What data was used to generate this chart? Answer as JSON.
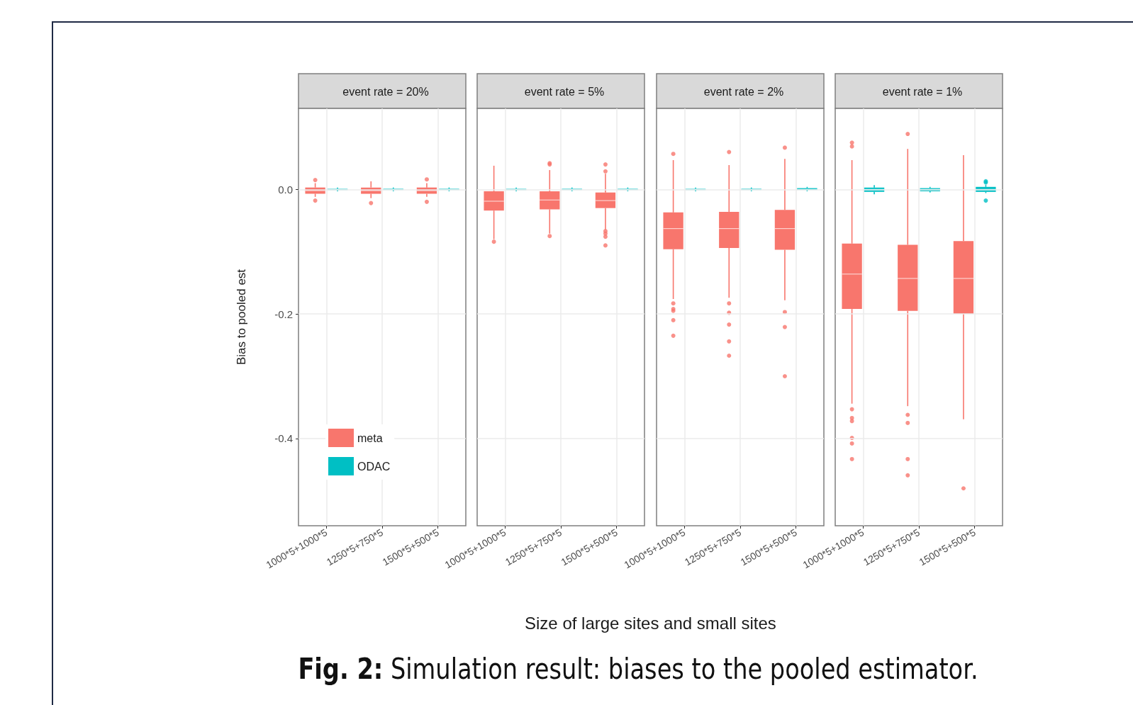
{
  "chart_data": [
    {
      "type": "box",
      "title": "event rate = 20%",
      "ylabel": "Bias to pooled est",
      "xlabel": "Size of large sites and small sites",
      "annotations": [
        "Fig. 2:  Simulation result: biases to the pooled estimator."
      ],
      "categories": [
        "1000*5+1000*5",
        "1250*5+750*5",
        "1500*5+500*5"
      ],
      "ylim": [
        -0.54,
        0.13
      ],
      "yticks": [
        {
          "value": 0,
          "label": "0.0"
        },
        -0.2,
        -0.4
      ],
      "grid": true,
      "legend": "bottom left",
      "series": [
        {
          "name": "meta",
          "color": "#f8766d",
          "boxes": [
            {
              "low": -0.012,
              "q1": -0.007,
              "median": -0.002,
              "q3": 0.003,
              "high": 0.01,
              "outliers": [
                0.015,
                -0.018
              ]
            },
            {
              "low": -0.014,
              "q1": -0.007,
              "median": -0.002,
              "q3": 0.003,
              "high": 0.013,
              "outliers": [
                -0.022
              ]
            },
            {
              "low": -0.012,
              "q1": -0.007,
              "median": -0.002,
              "q3": 0.003,
              "high": 0.01,
              "outliers": [
                0.016,
                -0.02
              ]
            }
          ]
        },
        {
          "name": "ODAC",
          "color": "#00bfc4",
          "boxes": [
            {
              "low": -0.003,
              "q1": -0.001,
              "median": 0,
              "q3": 0.001,
              "high": 0.003
            },
            {
              "low": -0.003,
              "q1": -0.001,
              "median": 0,
              "q3": 0.001,
              "high": 0.003
            },
            {
              "low": -0.003,
              "q1": -0.001,
              "median": 0,
              "q3": 0.001,
              "high": 0.003
            }
          ]
        }
      ]
    },
    {
      "type": "box",
      "title": "event rate = 5%",
      "categories": [
        "1000*5+1000*5",
        "1250*5+750*5",
        "1500*5+500*5"
      ],
      "ylim": [
        -0.54,
        0.13
      ],
      "yticks": [
        0,
        -0.2,
        -0.4
      ],
      "grid": true,
      "tick_labels": "x",
      "series": [
        {
          "color": "#f8766d",
          "boxes": [
            {
              "low": -0.08,
              "q1": -0.034,
              "median": -0.019,
              "q3": -0.003,
              "high": 0.038,
              "outliers": [
                -0.084
              ]
            },
            {
              "low": -0.071,
              "q1": -0.032,
              "median": -0.017,
              "q3": -0.003,
              "high": 0.031,
              "outliers": [
                0.042,
                0.04,
                -0.075
              ]
            },
            {
              "low": -0.065,
              "q1": -0.03,
              "median": -0.018,
              "q3": -0.005,
              "high": 0.025,
              "outliers": [
                0.04,
                0.029,
                -0.067,
                -0.071,
                -0.076,
                -0.09
              ]
            }
          ]
        },
        {
          "color": "#00bfc4",
          "boxes": [
            {
              "low": -0.003,
              "q1": -0.001,
              "median": 0,
              "q3": 0.001,
              "high": 0.003
            },
            {
              "low": -0.003,
              "q1": -0.001,
              "median": 0,
              "q3": 0.001,
              "high": 0.003
            },
            {
              "low": -0.003,
              "q1": -0.001,
              "median": 0,
              "q3": 0.001,
              "high": 0.003
            }
          ]
        }
      ]
    },
    {
      "type": "box",
      "title": "event rate = 2%",
      "categories": [
        "1000*5+1000*5",
        "1250*5+750*5",
        "1500*5+500*5"
      ],
      "ylim": [
        -0.54,
        0.13
      ],
      "yticks": [
        0,
        -0.2,
        -0.4
      ],
      "grid": true,
      "tick_labels": "x",
      "series": [
        {
          "color": "#f8766d",
          "boxes": [
            {
              "low": -0.176,
              "q1": -0.096,
              "median": -0.063,
              "q3": -0.037,
              "high": 0.047,
              "outliers": [
                0.057,
                -0.183,
                -0.192,
                -0.195,
                -0.21,
                -0.235
              ]
            },
            {
              "low": -0.174,
              "q1": -0.094,
              "median": -0.063,
              "q3": -0.036,
              "high": 0.039,
              "outliers": [
                0.06,
                -0.183,
                -0.198,
                -0.217,
                -0.244,
                -0.267
              ]
            },
            {
              "low": -0.178,
              "q1": -0.097,
              "median": -0.063,
              "q3": -0.033,
              "high": 0.049,
              "outliers": [
                0.067,
                -0.197,
                -0.221,
                -0.3
              ]
            }
          ]
        },
        {
          "color": "#00bfc4",
          "boxes": [
            {
              "low": -0.003,
              "q1": -0.001,
              "median": 0,
              "q3": 0.001,
              "high": 0.003
            },
            {
              "low": -0.003,
              "q1": -0.001,
              "median": 0,
              "q3": 0.001,
              "high": 0.003
            },
            {
              "low": -0.003,
              "q1": -0.001,
              "median": 0,
              "q3": 0.002,
              "high": 0.004
            }
          ]
        }
      ]
    },
    {
      "type": "box",
      "title": "event rate = 1%",
      "categories": [
        "1000*5+1000*5",
        "1250*5+750*5",
        "1500*5+500*5"
      ],
      "ylim": [
        -0.54,
        0.13
      ],
      "yticks": [
        0,
        -0.2,
        -0.4
      ],
      "grid": true,
      "tick_labels": "x",
      "series": [
        {
          "color": "#f8766d",
          "boxes": [
            {
              "low": -0.344,
              "q1": -0.192,
              "median": -0.136,
              "q3": -0.087,
              "high": 0.047,
              "outliers": [
                0.075,
                0.069,
                -0.353,
                -0.367,
                -0.372,
                -0.399,
                -0.408,
                -0.433
              ]
            },
            {
              "low": -0.348,
              "q1": -0.195,
              "median": -0.143,
              "q3": -0.089,
              "high": 0.065,
              "outliers": [
                0.089,
                -0.362,
                -0.375,
                -0.433,
                -0.459
              ]
            },
            {
              "low": -0.369,
              "q1": -0.2,
              "median": -0.143,
              "q3": -0.083,
              "high": 0.055,
              "outliers": [
                -0.48
              ]
            }
          ]
        },
        {
          "color": "#00bfc4",
          "boxes": [
            {
              "low": -0.008,
              "q1": -0.004,
              "median": 0,
              "q3": 0.003,
              "high": 0.007
            },
            {
              "low": -0.005,
              "q1": -0.003,
              "median": 0,
              "q3": 0.002,
              "high": 0.004
            },
            {
              "low": -0.006,
              "q1": -0.004,
              "median": 0,
              "q3": 0.004,
              "high": 0.007,
              "outliers": [
                0.011,
                0.013,
                -0.018
              ]
            }
          ]
        }
      ]
    }
  ]
}
